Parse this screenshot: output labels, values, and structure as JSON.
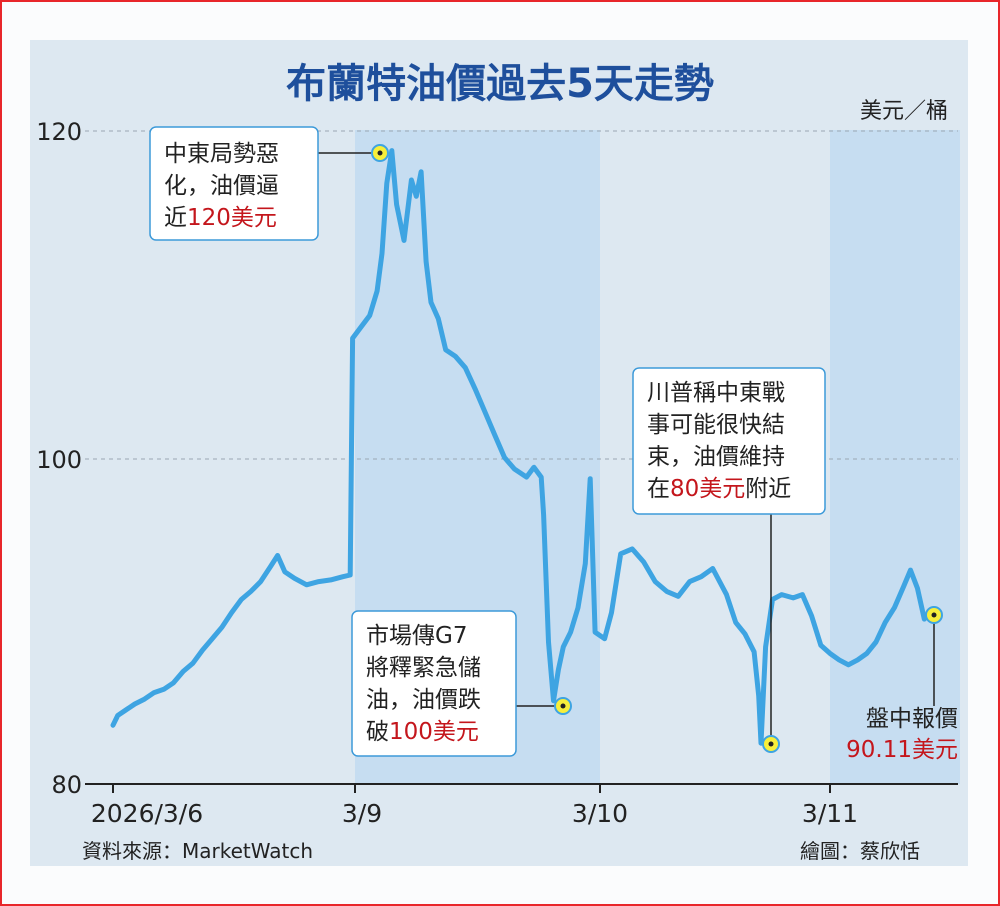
{
  "chart_data": {
    "type": "line",
    "title": "布蘭特油價過去5天走勢",
    "unit": "美元／桶",
    "ylim": [
      80,
      120
    ],
    "yticks": [
      "120",
      "100",
      "80"
    ],
    "xticks": [
      "2026/3/6",
      "3/9",
      "3/10",
      "3/11"
    ],
    "series": [
      {
        "values": [
          [
            0.0,
            83.6
          ],
          [
            0.02,
            84.2
          ],
          [
            0.05,
            84.5
          ],
          [
            0.09,
            84.9
          ],
          [
            0.13,
            85.2
          ],
          [
            0.17,
            85.6
          ],
          [
            0.21,
            85.8
          ],
          [
            0.25,
            86.2
          ],
          [
            0.29,
            86.9
          ],
          [
            0.33,
            87.4
          ],
          [
            0.37,
            88.2
          ],
          [
            0.41,
            88.9
          ],
          [
            0.45,
            89.6
          ],
          [
            0.49,
            90.5
          ],
          [
            0.53,
            91.3
          ],
          [
            0.57,
            91.8
          ],
          [
            0.61,
            92.4
          ],
          [
            0.65,
            93.3
          ],
          [
            0.68,
            94.0
          ],
          [
            0.71,
            93.0
          ],
          [
            0.75,
            92.6
          ],
          [
            0.8,
            92.2
          ],
          [
            0.85,
            92.4
          ],
          [
            0.9,
            92.5
          ],
          [
            0.95,
            92.7
          ],
          [
            0.98,
            92.8
          ],
          [
            0.99,
            107.3
          ],
          [
            1.02,
            107.9
          ],
          [
            1.06,
            108.7
          ],
          [
            1.09,
            110.2
          ],
          [
            1.11,
            112.5
          ],
          [
            1.13,
            116.8
          ],
          [
            1.15,
            118.8
          ],
          [
            1.17,
            115.5
          ],
          [
            1.2,
            113.3
          ],
          [
            1.23,
            117.0
          ],
          [
            1.25,
            116.0
          ],
          [
            1.27,
            117.5
          ],
          [
            1.29,
            112.0
          ],
          [
            1.31,
            109.5
          ],
          [
            1.34,
            108.5
          ],
          [
            1.37,
            106.6
          ],
          [
            1.41,
            106.2
          ],
          [
            1.45,
            105.5
          ],
          [
            1.49,
            104.2
          ],
          [
            1.53,
            102.8
          ],
          [
            1.57,
            101.4
          ],
          [
            1.61,
            100.0
          ],
          [
            1.65,
            99.3
          ],
          [
            1.7,
            98.8
          ],
          [
            1.73,
            99.4
          ],
          [
            1.76,
            98.8
          ],
          [
            1.77,
            96.5
          ],
          [
            1.78,
            92.5
          ],
          [
            1.79,
            88.7
          ],
          [
            1.81,
            85.1
          ],
          [
            1.83,
            87.0
          ],
          [
            1.85,
            88.4
          ],
          [
            1.88,
            89.3
          ],
          [
            1.91,
            90.8
          ],
          [
            1.94,
            93.5
          ],
          [
            1.96,
            98.7
          ],
          [
            1.98,
            89.3
          ],
          [
            2.02,
            88.9
          ],
          [
            2.05,
            90.5
          ],
          [
            2.09,
            94.1
          ],
          [
            2.14,
            94.4
          ],
          [
            2.19,
            93.6
          ],
          [
            2.24,
            92.4
          ],
          [
            2.29,
            91.8
          ],
          [
            2.34,
            91.5
          ],
          [
            2.39,
            92.4
          ],
          [
            2.44,
            92.7
          ],
          [
            2.49,
            93.2
          ],
          [
            2.55,
            91.6
          ],
          [
            2.59,
            89.9
          ],
          [
            2.63,
            89.2
          ],
          [
            2.67,
            88.1
          ],
          [
            2.69,
            85.4
          ],
          [
            2.7,
            82.5
          ],
          [
            2.72,
            88.4
          ],
          [
            2.75,
            91.3
          ],
          [
            2.79,
            91.6
          ],
          [
            2.84,
            91.4
          ],
          [
            2.88,
            91.6
          ],
          [
            2.92,
            90.3
          ],
          [
            2.96,
            88.5
          ],
          [
            3.0,
            88.0
          ],
          [
            3.04,
            87.6
          ],
          [
            3.08,
            87.3
          ],
          [
            3.12,
            87.6
          ],
          [
            3.16,
            88.0
          ],
          [
            3.2,
            88.7
          ],
          [
            3.24,
            89.9
          ],
          [
            3.28,
            90.8
          ],
          [
            3.32,
            92.1
          ],
          [
            3.35,
            93.1
          ],
          [
            3.38,
            92.0
          ],
          [
            3.41,
            90.1
          ]
        ]
      }
    ]
  },
  "annotations": [
    {
      "line1": "中東局勢惡",
      "line2": "化，油價逼",
      "line3_prefix": "近",
      "line3_highlight": "120美元",
      "line3_suffix": ""
    },
    {
      "line1": "市場傳G7",
      "line2": "將釋緊急儲",
      "line3": "油，油價跌",
      "line4_prefix": "破",
      "line4_highlight": "100美元",
      "line4_suffix": ""
    },
    {
      "line1": "川普稱中東戰",
      "line2": "事可能很快結",
      "line3": "束，油價維持",
      "line4_prefix": "在",
      "line4_highlight": "80美元",
      "line4_suffix": "附近"
    },
    {
      "line1": "盤中報價",
      "line2": "90.11美元"
    }
  ],
  "source": "資料來源：MarketWatch",
  "credit": "繪圖：蔡欣恬",
  "colors": {
    "line": "#3ea4e2",
    "title": "#1e4f9c",
    "highlight": "#c4161c",
    "band": "#c6ddf1",
    "box_border": "#3d9ad9"
  }
}
